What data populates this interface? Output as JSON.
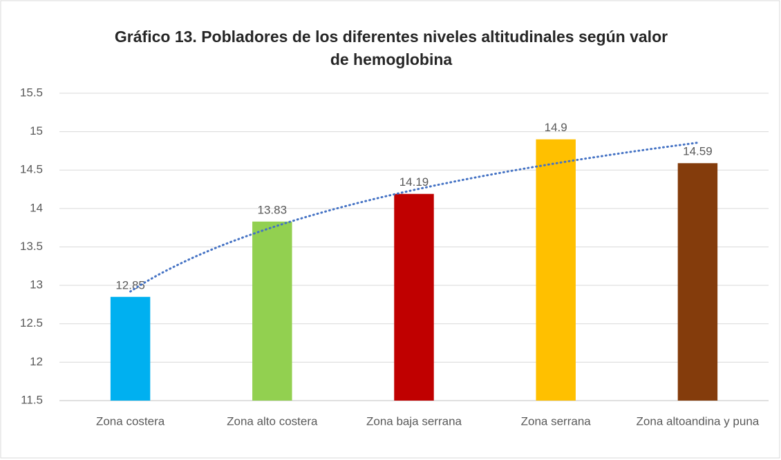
{
  "chart_data": {
    "type": "bar",
    "title": [
      "Gráfico 13. Pobladores de los diferentes  niveles altitudinales según valor",
      "de hemoglobina"
    ],
    "categories": [
      "Zona costera",
      "Zona alto costera",
      "Zona baja serrana",
      "Zona serrana",
      "Zona altoandina y puna"
    ],
    "values": [
      12.85,
      13.83,
      14.19,
      14.9,
      14.59
    ],
    "colors": [
      "#00b0f0",
      "#92d050",
      "#c00000",
      "#ffc000",
      "#843c0c"
    ],
    "ylim": [
      11.5,
      15.5
    ],
    "yticks": [
      11.5,
      12,
      12.5,
      13,
      13.5,
      14,
      14.5,
      15,
      15.5
    ],
    "grid": true,
    "trendline": "logarithmic",
    "trendline_color": "#4472c4"
  }
}
